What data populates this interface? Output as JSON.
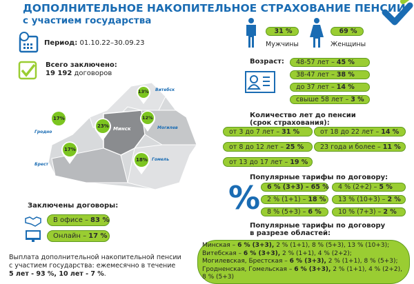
{
  "header": {
    "title_line1": "ДОПОЛНИТЕЛЬНОЕ НАКОПИТЕЛЬНОЕ СТРАХОВАНИЕ ПЕНСИИ",
    "title_line2": "с участием государства"
  },
  "period": {
    "label": "Период:",
    "value": "01.10.22–30.09.23"
  },
  "total": {
    "label": "Всего заключено:",
    "count": "19 192",
    "unit": "договоров"
  },
  "map": {
    "regions": [
      {
        "name": "Витебск",
        "percent": "13%"
      },
      {
        "name": "Гродно",
        "percent": "17%"
      },
      {
        "name": "Минск",
        "percent": "23%"
      },
      {
        "name": "Могилев",
        "percent": "12%"
      },
      {
        "name": "Брест",
        "percent": "17%"
      },
      {
        "name": "Гомель",
        "percent": "18%"
      }
    ]
  },
  "gender": {
    "men_value": "31 %",
    "men_label": "Мужчины",
    "women_value": "69 %",
    "women_label": "Женщины"
  },
  "age": {
    "label": "Возраст:",
    "items": [
      {
        "text": "48-57 лет –",
        "value": "45 %"
      },
      {
        "text": "38-47 лет –",
        "value": "38 %"
      },
      {
        "text": "до 37 лет –",
        "value": "14 %"
      },
      {
        "text": "свыше 58 лет –",
        "value": "3 %"
      }
    ]
  },
  "term": {
    "label_line1": "Количество лет до пенсии",
    "label_line2": "(срок страхования):",
    "items": [
      {
        "text": "от 3 до 7 лет –",
        "value": "31 %"
      },
      {
        "text": "от 18 до 22 лет –",
        "value": "14 %"
      },
      {
        "text": "от 8 до 12 лет –",
        "value": "25 %"
      },
      {
        "text": "23 года и более –",
        "value": "11 %"
      },
      {
        "text": "от 13 до 17 лет –",
        "value": "19 %"
      }
    ]
  },
  "tariffs": {
    "label": "Популярные тарифы по договору:",
    "symbol": "%",
    "items": [
      {
        "text": "6 % (3+3) –",
        "value": "65 %"
      },
      {
        "text": "4 % (2+2) –",
        "value": "5 %"
      },
      {
        "text": "2 % (1+1) –",
        "value": "18 %"
      },
      {
        "text": "13 % (10+3) –",
        "value": "2 %"
      },
      {
        "text": "8 % (5+3) –",
        "value": "6 %"
      },
      {
        "text": "10 % (7+3) –",
        "value": "2 %"
      }
    ]
  },
  "regional": {
    "label_line1": "Популярные тарифы по договору",
    "label_line2": "в разрезе областей:",
    "rows": [
      {
        "region": "Минская –",
        "main": "6 %  (3+3),",
        "rest": "2 % (1+1), 8 % (5+3), 13 % (10+3);"
      },
      {
        "region": "Витебская –",
        "main": "6 %  (3+3),",
        "rest": "2 % (1+1), 4 % (2+2);"
      },
      {
        "region": "Могилевская, Брестская –",
        "main": "6 %  (3+3),",
        "rest": "2 % (1+1), 8 % (5+3);"
      },
      {
        "region": "Гродненская, Гомельская  –",
        "main": "6 %  (3+3),",
        "rest": "2 % (1+1), 4 % (2+2), 8 % (5+3)"
      }
    ]
  },
  "channels": {
    "label": "Заключены договоры:",
    "office_text": "В офисе –",
    "office_value": "83 %",
    "online_text": "Онлайн –",
    "online_value": "17 %"
  },
  "payout": {
    "line1": "Выплата дополнительной накопительной пенсии",
    "line2": "с участием государства: ежемесячно в течение",
    "bold": "5 лет - 93 %, 10 лет - 7 %",
    "end": "."
  },
  "colors": {
    "brand_blue": "#1a6cb3",
    "pill_green": "#9acd32",
    "pill_border": "#5e9a1c"
  }
}
